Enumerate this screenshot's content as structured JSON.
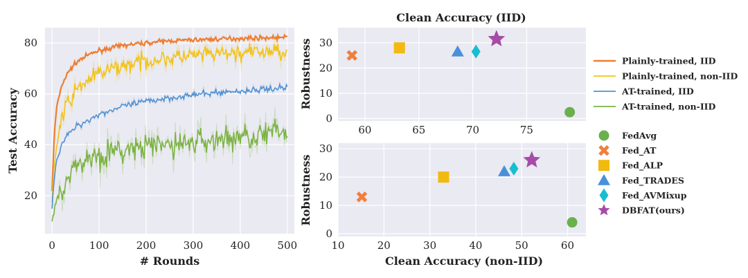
{
  "chart_data": [
    {
      "type": "line",
      "title": "",
      "xlabel": "# Rounds",
      "ylabel": "Test  Accuracy",
      "xlim": [
        -15,
        515
      ],
      "ylim": [
        5,
        86
      ],
      "xticks": [
        0,
        100,
        200,
        300,
        400,
        500
      ],
      "yticks": [
        20,
        40,
        60,
        80
      ],
      "grid": true,
      "series": [
        {
          "name": "Plainly-trained, IID",
          "color": "#ed7d31",
          "x": [
            0,
            5,
            10,
            20,
            30,
            40,
            50,
            60,
            80,
            100,
            150,
            200,
            250,
            300,
            350,
            400,
            450,
            500
          ],
          "y": [
            22,
            45,
            55,
            63,
            67,
            70,
            72,
            73.5,
            75.5,
            77,
            79,
            80,
            80.8,
            81.2,
            81.5,
            81.8,
            82,
            82.2
          ]
        },
        {
          "name": "Plainly-trained, non-IID",
          "color": "#f2c318",
          "x": [
            0,
            5,
            10,
            20,
            30,
            40,
            50,
            60,
            80,
            100,
            150,
            200,
            250,
            300,
            350,
            400,
            450,
            500
          ],
          "y": [
            18,
            33,
            40,
            50,
            55,
            58,
            61,
            63,
            66,
            68,
            71,
            73,
            74,
            75,
            75.5,
            76,
            76.5,
            77
          ]
        },
        {
          "name": "AT-trained, IID",
          "color": "#4f91d3",
          "x": [
            0,
            5,
            10,
            20,
            30,
            40,
            50,
            60,
            80,
            100,
            150,
            200,
            250,
            300,
            350,
            400,
            450,
            500
          ],
          "y": [
            15,
            28,
            34,
            40,
            43,
            45,
            47,
            48,
            50,
            52,
            55,
            57,
            58.5,
            59.5,
            60.5,
            61,
            61.8,
            62.5
          ]
        },
        {
          "name": "AT-trained, non-IID",
          "color": "#7cb342",
          "x": [
            0,
            5,
            10,
            20,
            30,
            40,
            50,
            60,
            80,
            100,
            150,
            200,
            250,
            300,
            350,
            400,
            450,
            500
          ],
          "y": [
            10,
            15,
            18,
            23,
            27,
            29,
            31,
            33,
            35,
            36,
            37.5,
            39,
            40,
            41,
            42,
            43,
            44,
            45
          ]
        }
      ]
    },
    {
      "type": "scatter",
      "title": "Clean Accuracy (IID)",
      "xlabel": "",
      "ylabel": "Robustness",
      "xlim": [
        57.5,
        80.5
      ],
      "ylim": [
        -1,
        36
      ],
      "xticks": [
        60,
        65,
        70,
        75
      ],
      "yticks": [
        0,
        10,
        20,
        30
      ],
      "grid": true,
      "points": [
        {
          "name": "FedAvg",
          "marker": "circle",
          "color": "#6ab04c",
          "x": 79,
          "y": 2.5
        },
        {
          "name": "Fed_AT",
          "marker": "x",
          "color": "#f07f3c",
          "x": 58.8,
          "y": 25
        },
        {
          "name": "Fed_ALP",
          "marker": "square",
          "color": "#f2b90f",
          "x": 63.2,
          "y": 28
        },
        {
          "name": "Fed_TRADES",
          "marker": "triangle",
          "color": "#4a90d9",
          "x": 68.6,
          "y": 26.5
        },
        {
          "name": "Fed_AVMixup",
          "marker": "diamond",
          "color": "#17becf",
          "x": 70.3,
          "y": 26.5
        },
        {
          "name": "DBFAT(ours)",
          "marker": "star",
          "color": "#a64ca6",
          "x": 72.2,
          "y": 31.5
        }
      ]
    },
    {
      "type": "scatter",
      "title": "",
      "xlabel": "Clean Accuracy (non-IID)",
      "ylabel": "Robustness",
      "xlim": [
        10,
        64
      ],
      "ylim": [
        -1,
        32
      ],
      "xticks": [
        10,
        20,
        30,
        40,
        50,
        60
      ],
      "yticks": [
        0,
        10,
        20,
        30
      ],
      "grid": true,
      "points": [
        {
          "name": "FedAvg",
          "marker": "circle",
          "color": "#6ab04c",
          "x": 61,
          "y": 4
        },
        {
          "name": "Fed_AT",
          "marker": "x",
          "color": "#f07f3c",
          "x": 15.2,
          "y": 13
        },
        {
          "name": "Fed_ALP",
          "marker": "square",
          "color": "#f2b90f",
          "x": 33,
          "y": 20
        },
        {
          "name": "Fed_TRADES",
          "marker": "triangle",
          "color": "#4a90d9",
          "x": 46.2,
          "y": 22
        },
        {
          "name": "Fed_AVMixup",
          "marker": "diamond",
          "color": "#17becf",
          "x": 48.3,
          "y": 23
        },
        {
          "name": "DBFAT(ours)",
          "marker": "star",
          "color": "#a64ca6",
          "x": 52.2,
          "y": 26
        }
      ]
    }
  ],
  "legends": {
    "lines": [
      "Plainly-trained, IID",
      "Plainly-trained, non-IID",
      "AT-trained, IID",
      "AT-trained, non-IID"
    ],
    "methods": [
      "FedAvg",
      "Fed_AT",
      "Fed_ALP",
      "Fed_TRADES",
      "Fed_AVMixup",
      "DBFAT(ours)"
    ]
  }
}
